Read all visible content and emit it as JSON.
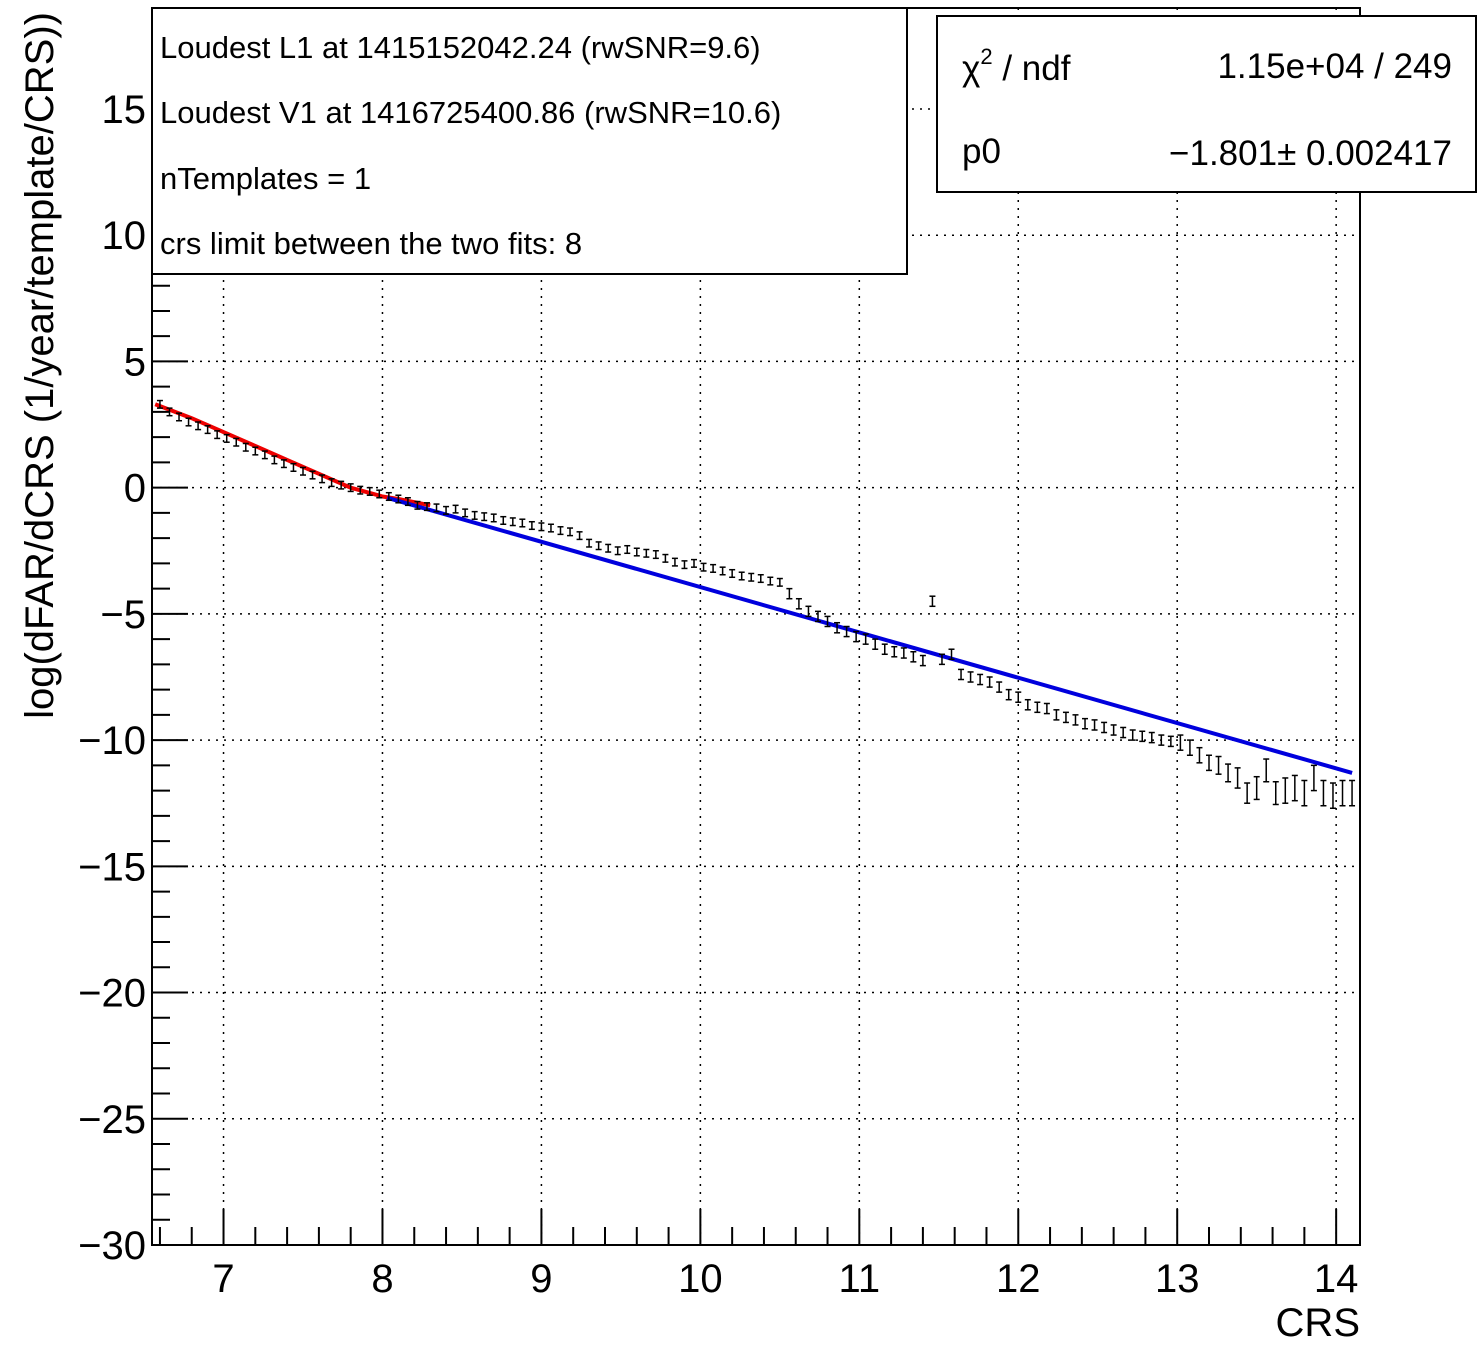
{
  "chart_data": {
    "type": "scatter",
    "title": "",
    "xlabel": "CRS",
    "ylabel": "log(dFAR/dCRS (1/year/template/CRS))",
    "xlim": [
      6.55,
      14.15
    ],
    "ylim": [
      -30,
      19
    ],
    "x_ticks": [
      7,
      8,
      9,
      10,
      11,
      12,
      13,
      14
    ],
    "y_ticks": [
      -30,
      -25,
      -20,
      -15,
      -10,
      -5,
      0,
      5,
      10,
      15
    ],
    "x_tick_labels": [
      "7",
      "8",
      "9",
      "10",
      "11",
      "12",
      "13",
      "14"
    ],
    "y_tick_labels": [
      "−30",
      "−25",
      "−20",
      "−15",
      "−10",
      "−5",
      "0",
      "5",
      "10",
      "15"
    ],
    "grid": true,
    "info_box": {
      "lines": [
        "Loudest L1 at 1415152042.24 (rwSNR=9.6)",
        "Loudest V1 at 1416725400.86 (rwSNR=10.6)",
        "nTemplates = 1",
        "crs limit between the two fits: 8"
      ]
    },
    "stats_box": {
      "chi2_label": "χ",
      "chi2_sup": "2",
      "chi2_rest": " / ndf",
      "chi2_value": "1.15e+04 / 249",
      "p0_label": "p0",
      "p0_value": "−1.801± 0.002417"
    },
    "fits": [
      {
        "name": "red fit",
        "color": "#ee0000",
        "x": [
          6.57,
          6.8,
          7.0,
          7.2,
          7.4,
          7.6,
          7.8,
          8.0,
          8.1,
          8.3
        ],
        "y": [
          3.3,
          2.75,
          2.2,
          1.65,
          1.1,
          0.55,
          0.0,
          -0.35,
          -0.45,
          -0.7
        ]
      },
      {
        "name": "blue fit",
        "color": "#0000dd",
        "x": [
          8.03,
          14.1
        ],
        "y": [
          -0.4,
          -11.3
        ]
      }
    ],
    "series": [
      {
        "color": "#000000",
        "x": [
          6.6,
          6.66,
          6.72,
          6.78,
          6.84,
          6.9,
          6.96,
          7.02,
          7.08,
          7.14,
          7.2,
          7.26,
          7.32,
          7.38,
          7.44,
          7.5,
          7.56,
          7.62,
          7.68,
          7.74,
          7.8,
          7.86,
          7.92,
          7.98,
          8.04,
          8.1,
          8.16,
          8.22,
          8.28,
          8.34,
          8.4,
          8.46,
          8.52,
          8.58,
          8.64,
          8.7,
          8.76,
          8.82,
          8.88,
          8.94,
          9.0,
          9.06,
          9.12,
          9.18,
          9.24,
          9.3,
          9.36,
          9.42,
          9.48,
          9.54,
          9.6,
          9.66,
          9.72,
          9.78,
          9.84,
          9.9,
          9.96,
          10.02,
          10.08,
          10.14,
          10.2,
          10.26,
          10.32,
          10.38,
          10.44,
          10.5,
          10.56,
          10.62,
          10.68,
          10.74,
          10.8,
          10.86,
          10.92,
          10.98,
          11.04,
          11.1,
          11.16,
          11.22,
          11.28,
          11.34,
          11.4,
          11.46,
          11.52,
          11.58,
          11.64,
          11.7,
          11.76,
          11.82,
          11.88,
          11.94,
          12.0,
          12.06,
          12.12,
          12.18,
          12.24,
          12.3,
          12.36,
          12.42,
          12.48,
          12.54,
          12.6,
          12.66,
          12.72,
          12.78,
          12.84,
          12.9,
          12.96,
          13.02,
          13.08,
          13.14,
          13.2,
          13.26,
          13.32,
          13.38,
          13.44,
          13.5,
          13.56,
          13.62,
          13.68,
          13.74,
          13.8,
          13.86,
          13.92,
          13.98,
          14.04,
          14.1
        ],
        "y": [
          3.3,
          3.0,
          2.8,
          2.6,
          2.45,
          2.3,
          2.1,
          1.95,
          1.8,
          1.6,
          1.45,
          1.3,
          1.1,
          0.95,
          0.8,
          0.65,
          0.5,
          0.35,
          0.2,
          0.1,
          0.0,
          -0.1,
          -0.15,
          -0.25,
          -0.35,
          -0.45,
          -0.55,
          -0.7,
          -0.75,
          -0.8,
          -0.9,
          -0.85,
          -1.0,
          -1.1,
          -1.15,
          -1.2,
          -1.3,
          -1.35,
          -1.4,
          -1.5,
          -1.55,
          -1.6,
          -1.7,
          -1.75,
          -1.9,
          -2.2,
          -2.3,
          -2.4,
          -2.5,
          -2.45,
          -2.55,
          -2.6,
          -2.65,
          -2.8,
          -2.95,
          -3.05,
          -3.0,
          -3.15,
          -3.2,
          -3.3,
          -3.4,
          -3.5,
          -3.55,
          -3.6,
          -3.7,
          -3.75,
          -4.2,
          -4.6,
          -4.9,
          -5.1,
          -5.3,
          -5.55,
          -5.7,
          -5.9,
          -6.0,
          -6.2,
          -6.4,
          -6.5,
          -6.55,
          -6.7,
          -6.85,
          -4.5,
          -6.8,
          -6.6,
          -7.4,
          -7.5,
          -7.6,
          -7.7,
          -7.9,
          -8.2,
          -8.3,
          -8.6,
          -8.7,
          -8.75,
          -9.0,
          -9.1,
          -9.2,
          -9.35,
          -9.4,
          -9.5,
          -9.6,
          -9.7,
          -9.8,
          -9.85,
          -9.9,
          -10.0,
          -10.05,
          -10.1,
          -10.3,
          -10.6,
          -10.9,
          -11.0,
          -11.3,
          -11.5,
          -12.1,
          -11.9,
          -11.2,
          -12.1,
          -12.0,
          -11.9,
          -12.1,
          -11.5,
          -12.1,
          -12.2,
          -12.1,
          -12.1
        ],
        "err": [
          0.15,
          0.15,
          0.15,
          0.15,
          0.15,
          0.15,
          0.15,
          0.15,
          0.15,
          0.15,
          0.15,
          0.15,
          0.15,
          0.15,
          0.15,
          0.15,
          0.15,
          0.15,
          0.15,
          0.15,
          0.15,
          0.15,
          0.15,
          0.15,
          0.15,
          0.15,
          0.15,
          0.15,
          0.15,
          0.15,
          0.15,
          0.15,
          0.15,
          0.15,
          0.15,
          0.15,
          0.15,
          0.15,
          0.15,
          0.15,
          0.15,
          0.15,
          0.15,
          0.15,
          0.15,
          0.15,
          0.15,
          0.15,
          0.15,
          0.15,
          0.15,
          0.15,
          0.15,
          0.15,
          0.15,
          0.15,
          0.15,
          0.15,
          0.15,
          0.15,
          0.15,
          0.15,
          0.15,
          0.15,
          0.15,
          0.15,
          0.2,
          0.2,
          0.2,
          0.2,
          0.2,
          0.2,
          0.2,
          0.2,
          0.2,
          0.2,
          0.2,
          0.2,
          0.2,
          0.2,
          0.2,
          0.2,
          0.2,
          0.2,
          0.2,
          0.2,
          0.2,
          0.2,
          0.2,
          0.2,
          0.2,
          0.2,
          0.2,
          0.2,
          0.2,
          0.2,
          0.2,
          0.2,
          0.2,
          0.2,
          0.2,
          0.2,
          0.2,
          0.2,
          0.2,
          0.2,
          0.2,
          0.3,
          0.3,
          0.3,
          0.3,
          0.35,
          0.35,
          0.4,
          0.4,
          0.45,
          0.45,
          0.45,
          0.5,
          0.5,
          0.5,
          0.5,
          0.5,
          0.5,
          0.5,
          0.5
        ]
      }
    ]
  }
}
